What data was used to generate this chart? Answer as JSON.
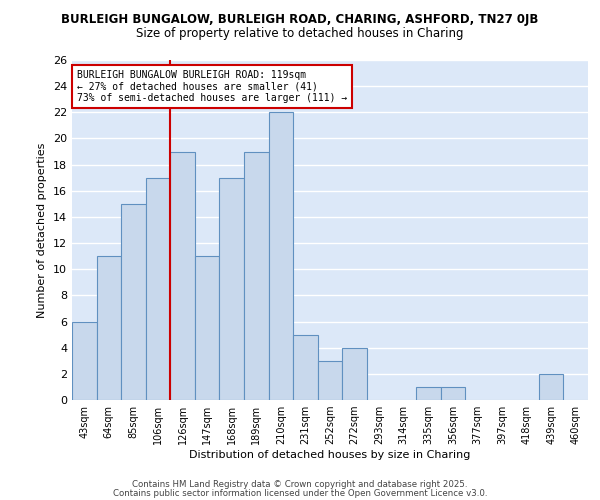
{
  "title1": "BURLEIGH BUNGALOW, BURLEIGH ROAD, CHARING, ASHFORD, TN27 0JB",
  "title2": "Size of property relative to detached houses in Charing",
  "xlabel": "Distribution of detached houses by size in Charing",
  "ylabel": "Number of detached properties",
  "bins": [
    "43sqm",
    "64sqm",
    "85sqm",
    "106sqm",
    "126sqm",
    "147sqm",
    "168sqm",
    "189sqm",
    "210sqm",
    "231sqm",
    "252sqm",
    "272sqm",
    "293sqm",
    "314sqm",
    "335sqm",
    "356sqm",
    "377sqm",
    "397sqm",
    "418sqm",
    "439sqm",
    "460sqm"
  ],
  "values": [
    6,
    11,
    15,
    17,
    19,
    11,
    17,
    19,
    22,
    5,
    3,
    4,
    0,
    0,
    1,
    1,
    0,
    0,
    0,
    2,
    0
  ],
  "bar_color": "#c8d8ec",
  "bar_edge_color": "#6090c0",
  "plot_bg_color": "#dce8f8",
  "fig_bg_color": "#ffffff",
  "grid_color": "#ffffff",
  "vline_x": 3.5,
  "vline_color": "#cc0000",
  "annotation_text": "BURLEIGH BUNGALOW BURLEIGH ROAD: 119sqm\n← 27% of detached houses are smaller (41)\n73% of semi-detached houses are larger (111) →",
  "annotation_box_edge_color": "#cc0000",
  "ylim": [
    0,
    26
  ],
  "yticks": [
    0,
    2,
    4,
    6,
    8,
    10,
    12,
    14,
    16,
    18,
    20,
    22,
    24,
    26
  ],
  "footer1": "Contains HM Land Registry data © Crown copyright and database right 2025.",
  "footer2": "Contains public sector information licensed under the Open Government Licence v3.0."
}
